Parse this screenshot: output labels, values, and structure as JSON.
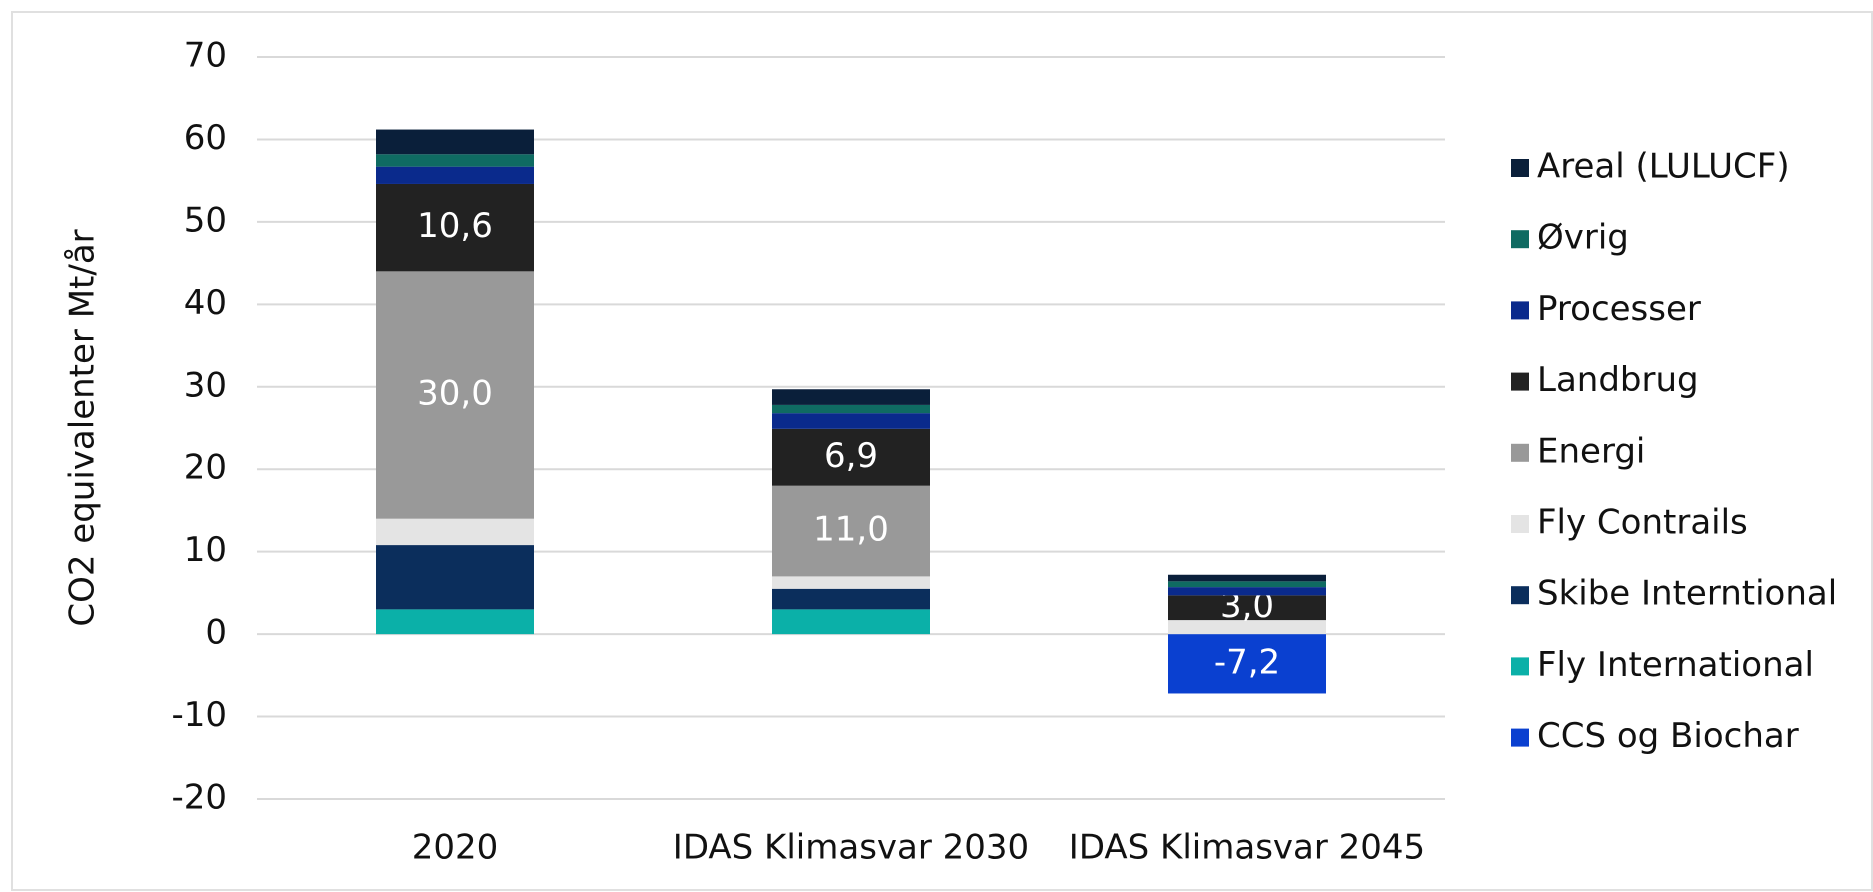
{
  "chart_data": {
    "type": "stacked_bar",
    "y_label": "CO2 equivalenter Mt/år",
    "categories": [
      "2020",
      "IDAS Klimasvar 2030",
      "IDAS Klimasvar 2045"
    ],
    "series": [
      {
        "name": "Areal (LULUCF)",
        "color": "#0a1f3a",
        "values": [
          3.0,
          1.9,
          0.8
        ]
      },
      {
        "name": "Øvrig",
        "color": "#0f6b62",
        "values": [
          1.5,
          1.0,
          0.7
        ]
      },
      {
        "name": "Processer",
        "color": "#0a2a8c",
        "values": [
          2.1,
          1.9,
          1.0
        ]
      },
      {
        "name": "Landbrug",
        "color": "#222222",
        "values": [
          10.6,
          6.9,
          3.0
        ],
        "value_labels": [
          "10,6",
          "6,9",
          "3,0"
        ]
      },
      {
        "name": "Energi",
        "color": "#999999",
        "values": [
          30.0,
          11.0,
          0
        ],
        "value_labels": [
          "30,0",
          "11,0",
          null
        ]
      },
      {
        "name": "Fly Contrails",
        "color": "#e4e4e4",
        "values": [
          3.2,
          1.5,
          1.7
        ]
      },
      {
        "name": "Skibe Interntional",
        "color": "#0b2e5c",
        "values": [
          7.8,
          2.5,
          0
        ]
      },
      {
        "name": "Fly International",
        "color": "#0bb0a8",
        "values": [
          3.0,
          3.0,
          0
        ]
      },
      {
        "name": "CCS og Biochar",
        "color": "#0a40d0",
        "values": [
          0,
          0,
          -7.2
        ],
        "value_labels": [
          null,
          null,
          "-7,2"
        ]
      }
    ],
    "ylim": [
      -20,
      70
    ],
    "yticks": [
      -20,
      -10,
      0,
      10,
      20,
      30,
      40,
      50,
      60,
      70
    ],
    "grid": true,
    "legend": "right"
  }
}
